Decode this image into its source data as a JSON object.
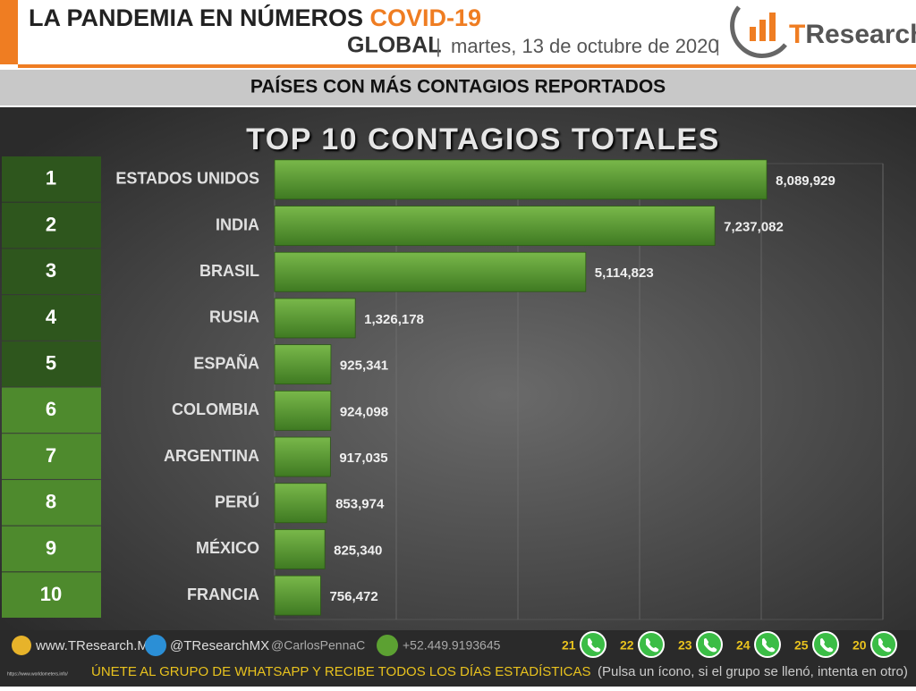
{
  "header": {
    "title": "LA PANDEMIA EN NÚMEROS",
    "topic": "COVID-19",
    "scope": "GLOBAL",
    "date": "martes, 13 de octubre de 2020",
    "logo_initial": "T",
    "logo_rest": "Research"
  },
  "banner": "PAÍSES CON MÁS CONTAGIOS REPORTADOS",
  "chart_data": {
    "type": "bar",
    "orientation": "horizontal",
    "title": "TOP 10 CONTAGIOS TOTALES",
    "ranks": [
      "1",
      "2",
      "3",
      "4",
      "5",
      "6",
      "7",
      "8",
      "9",
      "10"
    ],
    "rank_colors": [
      "#2e561d",
      "#2e561d",
      "#2e561d",
      "#2e561d",
      "#2e561d",
      "#4e8a2d",
      "#4e8a2d",
      "#4e8a2d",
      "#4e8a2d",
      "#4e8a2d"
    ],
    "categories": [
      "ESTADOS UNIDOS",
      "INDIA",
      "BRASIL",
      "RUSIA",
      "ESPAÑA",
      "COLOMBIA",
      "ARGENTINA",
      "PERÚ",
      "MÉXICO",
      "FRANCIA"
    ],
    "values": [
      8089929,
      7237082,
      5114823,
      1326178,
      925341,
      924098,
      917035,
      853974,
      825340,
      756472
    ],
    "value_labels": [
      "8,089,929",
      "7,237,082",
      "5,114,823",
      "1,326,178",
      "925,341",
      "924,098",
      "917,035",
      "853,974",
      "825,340",
      "756,472"
    ],
    "color": "#5c9b33",
    "xlim": [
      0,
      10000000
    ],
    "xticks": [
      0,
      2000000,
      4000000,
      6000000,
      8000000,
      10000000
    ],
    "grid": true
  },
  "footer": {
    "website": "www.TResearch.Mx",
    "twitter": "@TResearchMX",
    "twitter2": "@CarlosPennaC",
    "phone": "+52.449.9193645",
    "whatsapp_groups": [
      "21",
      "22",
      "23",
      "24",
      "25",
      "20"
    ],
    "cta": "ÚNETE AL GRUPO DE WHATSAPP Y RECIBE TODOS LOS DÍAS ESTADÍSTICAS",
    "cta_note": "(Pulsa un ícono, si el grupo se llenó, intenta en otro)",
    "source": "https://www.worldometers.info/"
  }
}
